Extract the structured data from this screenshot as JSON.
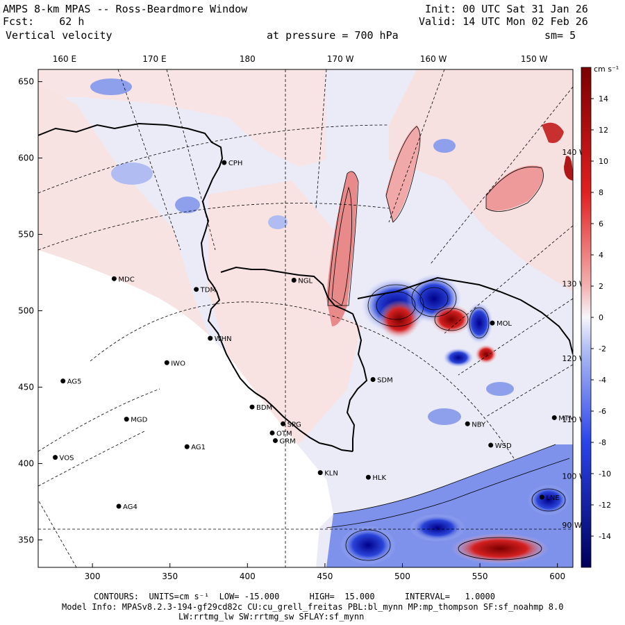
{
  "header": {
    "title": "AMPS 8-km MPAS -- Ross-Beardmore Window",
    "forecast_label": "Fcst:",
    "forecast_value": "62 h",
    "field": "Vertical velocity",
    "init": "Init: 00 UTC Sat 31 Jan 26",
    "valid": "Valid: 14 UTC Mon 02 Feb 26",
    "pressure_label": "at pressure =",
    "pressure_value": "700 hPa",
    "smoothing": "sm= 5"
  },
  "map": {
    "x_ticks": [
      {
        "label": "300",
        "value": 300
      },
      {
        "label": "350",
        "value": 350
      },
      {
        "label": "400",
        "value": 400
      },
      {
        "label": "450",
        "value": 450
      },
      {
        "label": "500",
        "value": 500
      },
      {
        "label": "550",
        "value": 550
      },
      {
        "label": "600",
        "value": 600
      }
    ],
    "y_ticks": [
      {
        "label": "350",
        "value": 350
      },
      {
        "label": "400",
        "value": 400
      },
      {
        "label": "450",
        "value": 450
      },
      {
        "label": "500",
        "value": 500
      },
      {
        "label": "550",
        "value": 550
      },
      {
        "label": "600",
        "value": 600
      },
      {
        "label": "650",
        "value": 650
      }
    ],
    "x_range": [
      265,
      610
    ],
    "y_range": [
      332,
      658
    ],
    "longitude_labels": [
      {
        "label": "160 E",
        "x": 282
      },
      {
        "label": "170 E",
        "x": 340
      },
      {
        "label": "180",
        "x": 400
      },
      {
        "label": "170 W",
        "x": 460
      },
      {
        "label": "160 W",
        "x": 520
      },
      {
        "label": "150 W",
        "x": 585
      }
    ],
    "meridian_labels": [
      {
        "label": "140 W",
        "x": 603,
        "y": 602
      },
      {
        "label": "130 W",
        "x": 603,
        "y": 516
      },
      {
        "label": "120 W",
        "x": 603,
        "y": 467
      },
      {
        "label": "110 W",
        "x": 603,
        "y": 427
      },
      {
        "label": "100 W",
        "x": 603,
        "y": 390
      },
      {
        "label": "90 W",
        "x": 603,
        "y": 358
      }
    ],
    "stations": [
      {
        "name": "CPH",
        "x": 385,
        "y": 597
      },
      {
        "name": "NGL",
        "x": 430,
        "y": 520
      },
      {
        "name": "MDC",
        "x": 314,
        "y": 521
      },
      {
        "name": "TDM",
        "x": 367,
        "y": 514
      },
      {
        "name": "WHN",
        "x": 376,
        "y": 482
      },
      {
        "name": "IWO",
        "x": 348,
        "y": 466
      },
      {
        "name": "AG5",
        "x": 281,
        "y": 454
      },
      {
        "name": "SDM",
        "x": 481,
        "y": 455
      },
      {
        "name": "BDM",
        "x": 403,
        "y": 437
      },
      {
        "name": "MGD",
        "x": 322,
        "y": 429
      },
      {
        "name": "SPG",
        "x": 423,
        "y": 426
      },
      {
        "name": "OTM",
        "x": 416,
        "y": 420
      },
      {
        "name": "GRM",
        "x": 418,
        "y": 415
      },
      {
        "name": "NBY",
        "x": 542,
        "y": 426
      },
      {
        "name": "AG1",
        "x": 361,
        "y": 411
      },
      {
        "name": "WSD",
        "x": 557,
        "y": 412
      },
      {
        "name": "VOS",
        "x": 276,
        "y": 404
      },
      {
        "name": "KLN",
        "x": 447,
        "y": 394
      },
      {
        "name": "HLK",
        "x": 478,
        "y": 391
      },
      {
        "name": "AG4",
        "x": 317,
        "y": 372
      },
      {
        "name": "MOL",
        "x": 558,
        "y": 492
      },
      {
        "name": "MTM",
        "x": 598,
        "y": 430
      },
      {
        "name": "LNE",
        "x": 590,
        "y": 378
      }
    ]
  },
  "colorbar": {
    "units": "cm s⁻¹",
    "range": [
      -16,
      16
    ],
    "ticks": [
      "14",
      "12",
      "10",
      "8",
      "6",
      "4",
      "2",
      "0",
      "-2",
      "-4",
      "-6",
      "-8",
      "-10",
      "-12",
      "-14"
    ],
    "colors": {
      "neg_max": "#00008b",
      "neg_mid": "#3a5cf0",
      "neg_light": "#e6e8f8",
      "pos_light": "#f8e4e4",
      "pos_mid": "#e03434",
      "pos_max": "#7a0000"
    }
  },
  "footer": {
    "contours": "CONTOURS:  UNITS=cm s⁻¹  LOW= -15.000      HIGH=  15.000      INTERVAL=   1.0000",
    "model_info": "Model Info: MPASv8.2.3-194-gf29cd82c CU:cu_grell_freitas PBL:bl_mynn MP:mp_thompson SF:sf_noahmp 8.0",
    "model_info2": "LW:rrtmg_lw SW:rrtmg_sw SFLAY:sf_mynn"
  }
}
